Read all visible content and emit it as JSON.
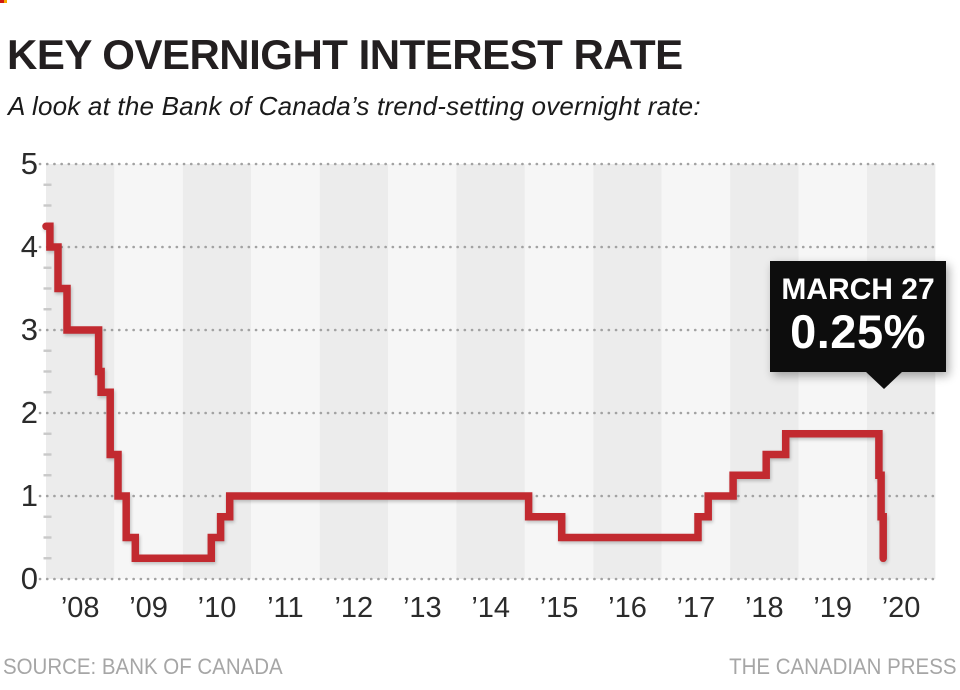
{
  "page": {
    "title": "KEY OVERNIGHT INTEREST RATE",
    "subtitle": "A look at the Bank of Canada’s trend-setting overnight rate:",
    "source": "SOURCE: BANK OF CANADA",
    "credit": "THE CANADIAN PRESS"
  },
  "callout": {
    "date_label": "MARCH 27",
    "value_label": "0.25%"
  },
  "colors": {
    "line": "#c22a30",
    "band_dark": "#ececec",
    "band_light": "#f6f6f6",
    "grid_dot": "#a2a2a2",
    "minor_tick": "#c9c9c9",
    "callout_bg": "#0d0d0d",
    "text": "#231f20",
    "footer_text": "#a6a6a6"
  },
  "chart_data": {
    "type": "line",
    "title": "Bank of Canada key overnight interest rate",
    "xlabel": "",
    "ylabel": "",
    "step": true,
    "grid": "dotted horizontal lines at integers, alternating vertical year bands",
    "legend": "none",
    "ylim": [
      0,
      5
    ],
    "yticks": [
      0,
      1,
      2,
      3,
      4,
      5
    ],
    "minor_tick_interval": 0.25,
    "x_years": [
      2008,
      2021
    ],
    "xticklabels": [
      "’08",
      "’09",
      "’10",
      "’11",
      "’12",
      "’13",
      "’14",
      "’15",
      "’16",
      "’17",
      "’18",
      "’19",
      "’20"
    ],
    "annotation": {
      "text": "MARCH 27 0.25%",
      "points_to_date": "2020-03-27"
    },
    "points": [
      {
        "date": "2008-01-01",
        "rate": 4.25
      },
      {
        "date": "2008-01-22",
        "rate": 4.0
      },
      {
        "date": "2008-03-04",
        "rate": 3.5
      },
      {
        "date": "2008-04-22",
        "rate": 3.0
      },
      {
        "date": "2008-10-08",
        "rate": 2.5
      },
      {
        "date": "2008-10-21",
        "rate": 2.25
      },
      {
        "date": "2008-12-09",
        "rate": 1.5
      },
      {
        "date": "2009-01-20",
        "rate": 1.0
      },
      {
        "date": "2009-03-03",
        "rate": 0.5
      },
      {
        "date": "2009-04-21",
        "rate": 0.25
      },
      {
        "date": "2010-06-01",
        "rate": 0.5
      },
      {
        "date": "2010-07-20",
        "rate": 0.75
      },
      {
        "date": "2010-09-08",
        "rate": 1.0
      },
      {
        "date": "2015-01-21",
        "rate": 0.75
      },
      {
        "date": "2015-07-15",
        "rate": 0.5
      },
      {
        "date": "2017-07-12",
        "rate": 0.75
      },
      {
        "date": "2017-09-06",
        "rate": 1.0
      },
      {
        "date": "2018-01-17",
        "rate": 1.25
      },
      {
        "date": "2018-07-11",
        "rate": 1.5
      },
      {
        "date": "2018-10-24",
        "rate": 1.75
      },
      {
        "date": "2020-03-04",
        "rate": 1.25
      },
      {
        "date": "2020-03-16",
        "rate": 0.75
      },
      {
        "date": "2020-03-27",
        "rate": 0.25
      }
    ]
  }
}
